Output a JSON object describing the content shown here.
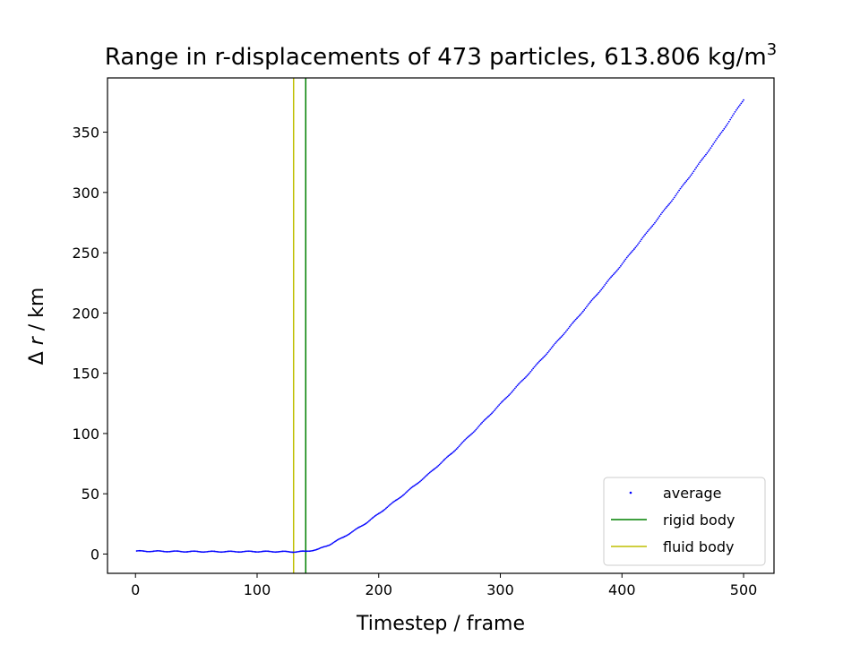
{
  "chart_data": {
    "type": "scatter",
    "title": "Range in r-displacements of 473 particles, 613.806 kg/m",
    "title_superscript": "3",
    "xlabel": "Timestep / frame",
    "ylabel_prefix": "Δ ",
    "ylabel_var": "r",
    "ylabel_suffix": " / km",
    "xlim": [
      -23,
      525
    ],
    "ylim": [
      -16,
      395
    ],
    "xticks": [
      0,
      100,
      200,
      300,
      400,
      500
    ],
    "yticks": [
      0,
      50,
      100,
      150,
      200,
      250,
      300,
      350
    ],
    "series": [
      {
        "name": "average",
        "color": "#0000ff",
        "marker": "point",
        "x_start": 1,
        "x_end": 500,
        "profile_x": [
          1,
          20,
          40,
          60,
          80,
          100,
          120,
          130,
          140,
          150,
          160,
          170,
          180,
          190,
          200,
          220,
          240,
          260,
          280,
          300,
          320,
          340,
          360,
          380,
          400,
          420,
          440,
          460,
          480,
          500
        ],
        "profile_y": [
          2.4,
          2.3,
          2.1,
          2.0,
          2.0,
          2.1,
          2.0,
          1.8,
          2.2,
          3.8,
          8.0,
          13.5,
          19.5,
          26.0,
          33.5,
          49.0,
          65.5,
          83.5,
          103.5,
          124.5,
          146.0,
          168.5,
          192.0,
          216.0,
          240.5,
          266.0,
          292.0,
          319.0,
          347.0,
          377.0
        ]
      }
    ],
    "vlines": [
      {
        "name": "rigid body",
        "x": 140,
        "color": "#008000"
      },
      {
        "name": "fluid body",
        "x": 130,
        "color": "#bfbf00"
      }
    ],
    "legend": {
      "position": "lower-right",
      "entries": [
        "average",
        "rigid body",
        "fluid body"
      ]
    },
    "grid": false
  }
}
